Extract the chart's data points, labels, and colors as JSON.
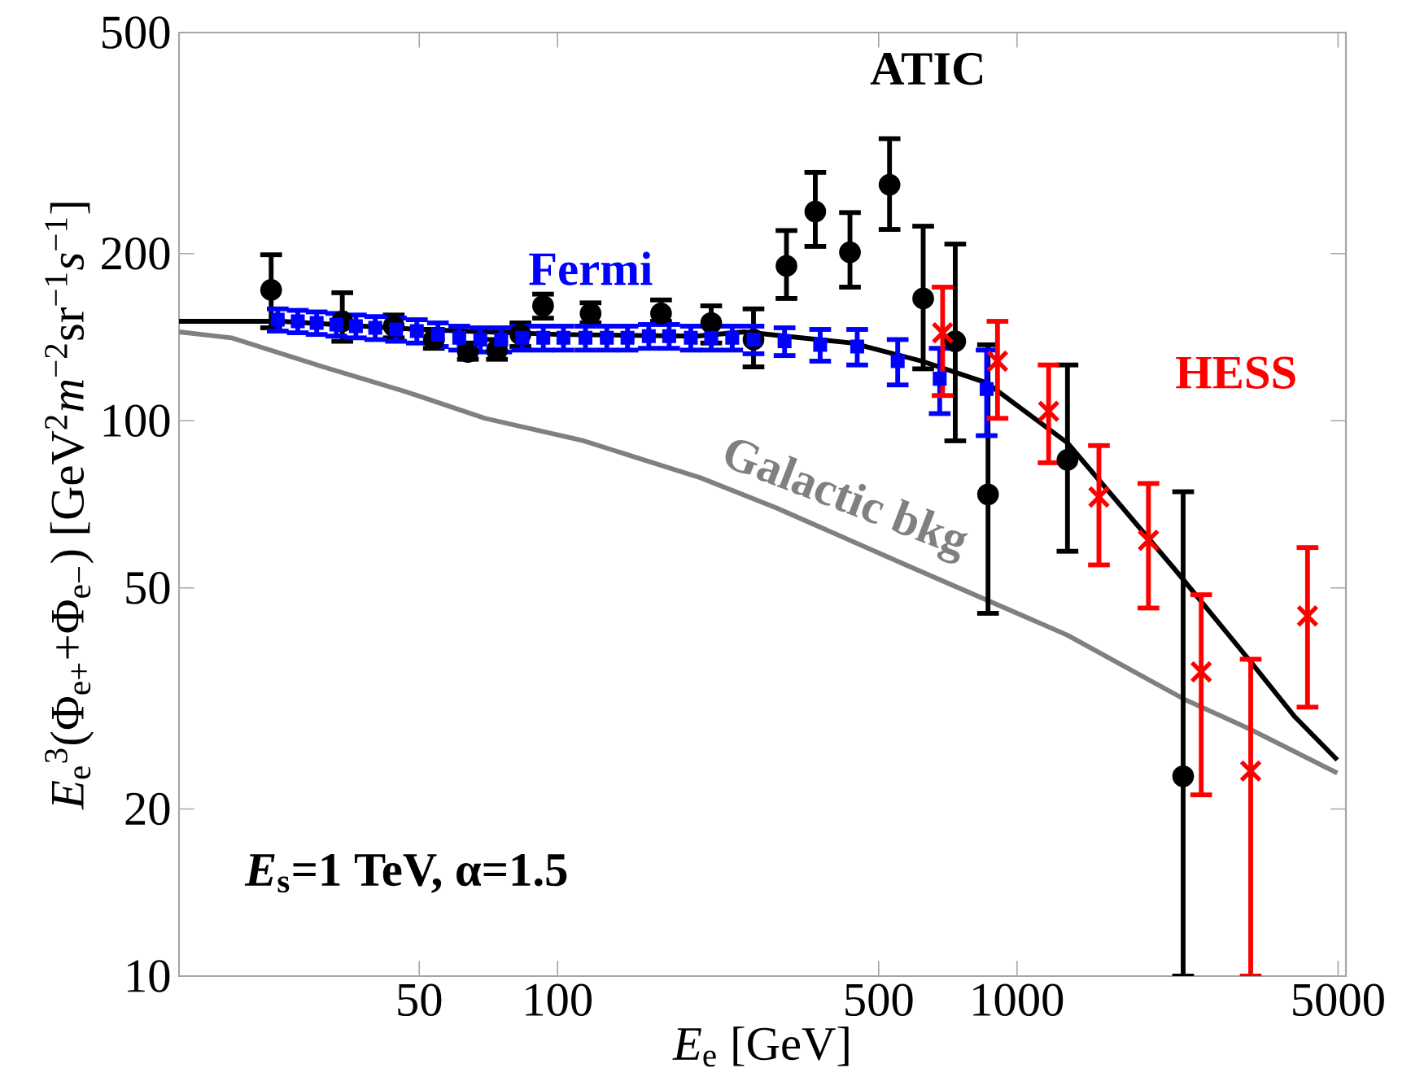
{
  "chart_data": {
    "type": "scatter",
    "xlabel": "*E*$_{e}$ [GeV]",
    "ylabel": "*E*$_{e}$$^{3}$(Φ$_{e+}$+Φ$_{e−}$) [GeV$^{2}$*m*$^{−2}$sr$^{−1}$*s*$^{−1}$]",
    "annotations": [
      "*E*$_{s}$=1 TeV, α=1.5"
    ],
    "log": "xy",
    "grid": false,
    "legend": false,
    "xlim": [
      15,
      5200
    ],
    "ylim": [
      10,
      500
    ],
    "xticks": [
      50,
      100,
      500,
      1000,
      5000
    ],
    "yticks": [
      10,
      20,
      50,
      100,
      200,
      500
    ],
    "series": [
      {
        "name": "Galactic bkg",
        "type": "line",
        "color": "#808080",
        "marker": "none",
        "line_style": "solid",
        "x": [
          15,
          19.5,
          30.9,
          46.4,
          69.5,
          113,
          205,
          299,
          573,
          1288,
          2333,
          3227,
          4980
        ],
        "values": [
          144.5,
          141,
          125,
          113,
          101,
          92.2,
          78.9,
          69.7,
          55,
          41.1,
          31.4,
          27.8,
          23.2
        ]
      },
      {
        "type": "line",
        "color": "#000000",
        "marker": "none",
        "line_style": "solid",
        "x": [
          15,
          25,
          50,
          100,
          200,
          255,
          437,
          621,
          859,
          1288,
          2214,
          3227,
          4010,
          4980
        ],
        "values": [
          151,
          151,
          146,
          143,
          142,
          144.5,
          138,
          128,
          117,
          91.2,
          53.8,
          36.8,
          29.4,
          24.5
        ]
      },
      {
        "name": "ATIC",
        "color": "#000000",
        "marker": "circle",
        "x": [
          23.8,
          34,
          44,
          53.8,
          63.8,
          73.8,
          83,
          93,
          118,
          168,
          216,
          267,
          315,
          364,
          433,
          528,
          625,
          734,
          865,
          1288,
          2300
        ],
        "values": [
          172,
          151,
          148,
          140,
          133,
          134,
          143,
          161,
          156,
          156,
          150,
          140,
          190,
          238,
          201,
          266,
          166,
          139,
          73.7,
          85,
          22.9
        ],
        "errors": [
          [
            147,
            199
          ],
          [
            139,
            170
          ],
          [
            141,
            155
          ],
          [
            135,
            146
          ],
          [
            129,
            138
          ],
          [
            129,
            140
          ],
          [
            136,
            150
          ],
          [
            153,
            169
          ],
          [
            150,
            163
          ],
          [
            151,
            165
          ],
          [
            138,
            161
          ],
          [
            125,
            159
          ],
          [
            166,
            220
          ],
          [
            206,
            280
          ],
          [
            174,
            237
          ],
          [
            221,
            322
          ],
          [
            124,
            224
          ],
          [
            92,
            208
          ],
          [
            45,
            137
          ],
          [
            58.2,
            126
          ],
          [
            10,
            74.5
          ]
        ]
      },
      {
        "name": "Fermi",
        "color": "#0000ff",
        "marker": "square",
        "x": [
          24.6,
          27.2,
          29.9,
          33.0,
          36.4,
          40.1,
          44.5,
          49.4,
          54.9,
          61.1,
          67.9,
          75.4,
          83.8,
          93.1,
          103,
          115,
          128,
          142,
          158,
          175,
          195,
          216,
          240,
          267,
          312,
          373,
          449,
          550,
          679,
          859
        ],
        "values": [
          152,
          151,
          150,
          149,
          148,
          147,
          146,
          145,
          143,
          141,
          140,
          140,
          141,
          141,
          141,
          141,
          141,
          141,
          142,
          142,
          141,
          141,
          141,
          140,
          139,
          137,
          136,
          128,
          119,
          114
        ],
        "errors": [
          7,
          7,
          7,
          7,
          7,
          7,
          7,
          7,
          7,
          7,
          7,
          7,
          7,
          7,
          7,
          7,
          7,
          7,
          7,
          7,
          7,
          7,
          7,
          8,
          8,
          9,
          10,
          12,
          16,
          20
        ]
      },
      {
        "name": "HESS",
        "color": "#ff0000",
        "marker": "cross",
        "x": [
          689,
          907,
          1172,
          1508,
          1933,
          2518,
          3227,
          4290
        ],
        "values": [
          144,
          128,
          104,
          72.9,
          60.9,
          35.3,
          23.4,
          44.5
        ],
        "errors": [
          [
            111,
            174
          ],
          [
            101,
            151
          ],
          [
            84,
            126
          ],
          [
            55,
            90.2
          ],
          [
            46,
            77.1
          ],
          [
            21.2,
            48.6
          ],
          [
            10,
            37.2
          ],
          [
            30.5,
            59.1
          ]
        ]
      }
    ]
  }
}
